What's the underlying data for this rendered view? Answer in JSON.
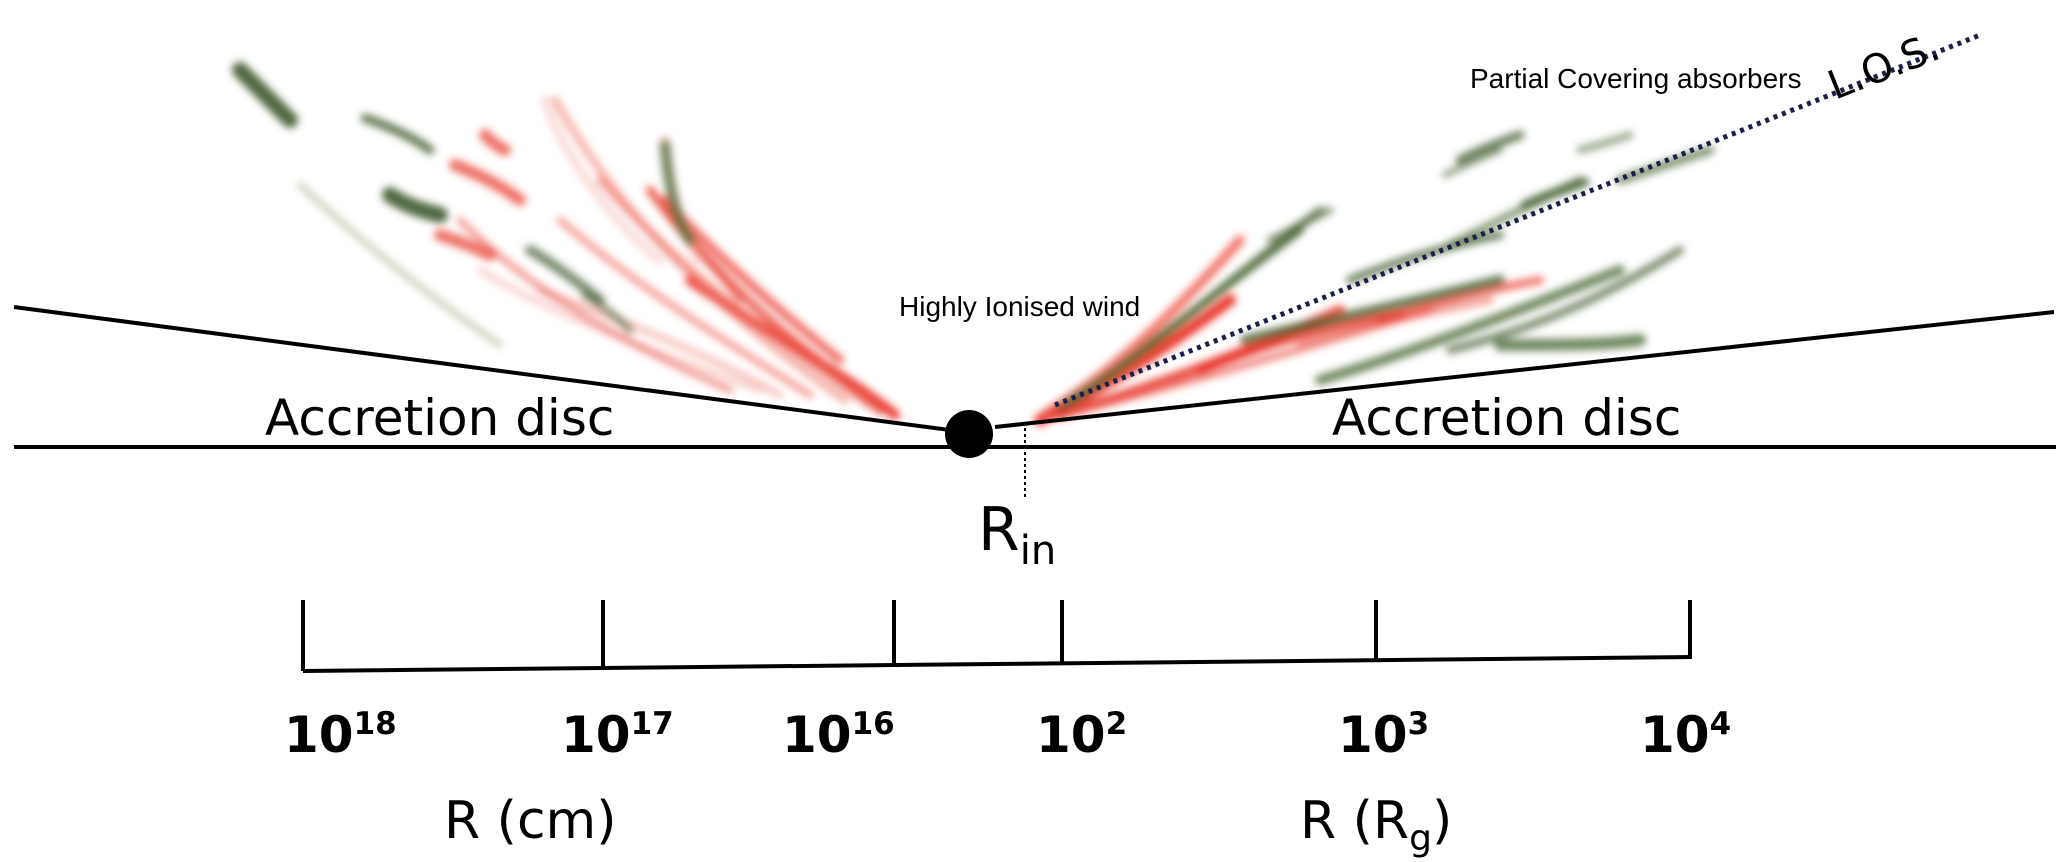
{
  "labels": {
    "accretion_disc_left": "Accretion disc",
    "accretion_disc_right": "Accretion disc",
    "highly_ionised_wind": "Highly Ionised wind",
    "partial_covering_absorbers": "Partial Covering absorbers",
    "line_of_sight": "L.O.S.",
    "r_in_main": "R",
    "r_in_sub": "in"
  },
  "scale": {
    "ticks": [
      {
        "base": "10",
        "exp": "18"
      },
      {
        "base": "10",
        "exp": "17"
      },
      {
        "base": "10",
        "exp": "16"
      },
      {
        "base": "10",
        "exp": "2"
      },
      {
        "base": "10",
        "exp": "3"
      },
      {
        "base": "10",
        "exp": "4"
      }
    ],
    "left_axis_title": "R (cm)",
    "right_axis_title_main": "R (R",
    "right_axis_title_sub": "g",
    "right_axis_title_end": ")"
  },
  "colors": {
    "wind_red": "#e82a1e",
    "absorber_green": "#3f5a2c",
    "line": "#000000",
    "los_dots": "#1b1f4a"
  }
}
